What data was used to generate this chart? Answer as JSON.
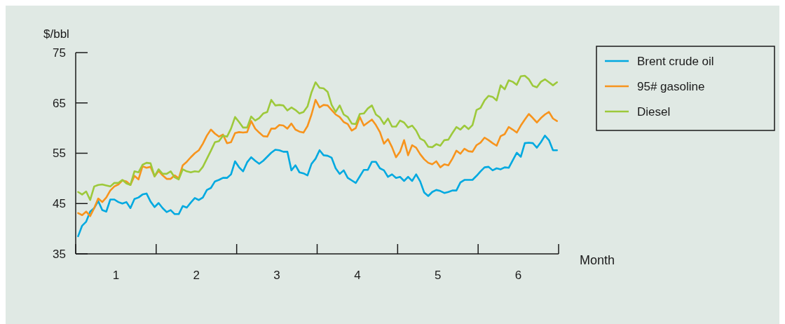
{
  "chart_data": {
    "type": "line",
    "ylabel": "$/bbl",
    "xlabel": "Month",
    "x": [
      0.03,
      0.08,
      0.13,
      0.18,
      0.23,
      0.28,
      0.33,
      0.38,
      0.43,
      0.48,
      0.53,
      0.58,
      0.63,
      0.68,
      0.73,
      0.78,
      0.83,
      0.88,
      0.93,
      0.98,
      1.03,
      1.08,
      1.13,
      1.18,
      1.23,
      1.28,
      1.33,
      1.38,
      1.43,
      1.48,
      1.53,
      1.58,
      1.63,
      1.68,
      1.73,
      1.78,
      1.83,
      1.88,
      1.93,
      1.98,
      2.03,
      2.08,
      2.13,
      2.18,
      2.23,
      2.28,
      2.33,
      2.38,
      2.43,
      2.48,
      2.53,
      2.58,
      2.63,
      2.68,
      2.73,
      2.78,
      2.83,
      2.88,
      2.93,
      2.98,
      3.03,
      3.08,
      3.13,
      3.18,
      3.23,
      3.28,
      3.33,
      3.38,
      3.43,
      3.48,
      3.53,
      3.58,
      3.63,
      3.68,
      3.73,
      3.78,
      3.83,
      3.88,
      3.93,
      3.98,
      4.03,
      4.08,
      4.13,
      4.18,
      4.23,
      4.28,
      4.33,
      4.38,
      4.43,
      4.48,
      4.53,
      4.58,
      4.63,
      4.68,
      4.73,
      4.78,
      4.83,
      4.88,
      4.93,
      4.98,
      5.03,
      5.08,
      5.13,
      5.18,
      5.23,
      5.28,
      5.33,
      5.38,
      5.43,
      5.48,
      5.53,
      5.58,
      5.63,
      5.68,
      5.73,
      5.78,
      5.83,
      5.88,
      5.93,
      5.98
    ],
    "series": [
      {
        "name": "Brent crude oil",
        "color": "#00a9e0",
        "values": [
          38.5,
          40.6,
          41.4,
          43.4,
          44.1,
          45.5,
          43.7,
          43.4,
          45.8,
          45.8,
          45.3,
          45.0,
          45.3,
          44.1,
          45.9,
          46.2,
          46.8,
          47.0,
          45.4,
          44.3,
          45.1,
          44.1,
          43.3,
          43.7,
          42.9,
          42.9,
          44.5,
          44.2,
          45.2,
          46.1,
          45.7,
          46.2,
          47.7,
          48.1,
          49.4,
          49.7,
          50.1,
          50.1,
          50.8,
          53.4,
          52.2,
          51.4,
          53.2,
          54.2,
          53.5,
          52.9,
          53.5,
          54.3,
          55.1,
          55.7,
          55.6,
          55.3,
          55.3,
          51.6,
          52.6,
          51.2,
          51.0,
          50.6,
          52.9,
          53.9,
          55.6,
          54.6,
          54.5,
          54.1,
          52.0,
          50.9,
          51.6,
          50.1,
          49.6,
          49.1,
          50.4,
          51.7,
          51.7,
          53.3,
          53.3,
          52.0,
          51.6,
          50.3,
          50.8,
          50.1,
          50.3,
          49.5,
          50.3,
          49.5,
          50.8,
          49.4,
          47.2,
          46.5,
          47.3,
          47.7,
          47.5,
          47.1,
          47.3,
          47.6,
          47.6,
          49.2,
          49.7,
          49.7,
          49.7,
          50.5,
          51.4,
          52.2,
          52.3,
          51.6,
          52.0,
          51.8,
          52.2,
          52.1,
          53.6,
          55.1,
          54.3,
          57.0,
          57.1,
          57.0,
          56.1,
          57.2,
          58.5,
          57.6,
          55.6,
          55.6
        ]
      },
      {
        "name": "95# gasoline",
        "color": "#f7941d",
        "values": [
          43.1,
          42.7,
          43.4,
          42.5,
          44.1,
          46.0,
          45.3,
          46.2,
          47.6,
          48.4,
          48.8,
          49.6,
          49.4,
          48.7,
          50.5,
          49.8,
          52.4,
          52.1,
          52.3,
          50.4,
          51.5,
          50.6,
          49.9,
          49.9,
          50.6,
          50.0,
          52.6,
          53.3,
          54.2,
          55.0,
          55.6,
          56.9,
          58.5,
          59.7,
          58.9,
          58.3,
          58.7,
          57.0,
          57.2,
          59.0,
          59.2,
          59.1,
          59.2,
          61.4,
          59.9,
          59.1,
          58.4,
          58.3,
          59.9,
          59.9,
          60.6,
          60.5,
          59.9,
          60.9,
          59.7,
          59.3,
          59.1,
          60.4,
          62.7,
          65.6,
          64.1,
          64.6,
          64.5,
          63.6,
          62.7,
          62.2,
          61.2,
          60.8,
          59.5,
          60.0,
          62.2,
          60.5,
          61.1,
          61.7,
          60.6,
          59.2,
          56.9,
          57.8,
          56.2,
          54.2,
          55.3,
          57.6,
          54.6,
          56.6,
          56.1,
          54.8,
          53.8,
          53.1,
          52.8,
          53.4,
          52.2,
          52.8,
          52.6,
          53.9,
          55.5,
          54.9,
          55.9,
          55.4,
          55.3,
          56.6,
          57.1,
          58.1,
          57.6,
          57.0,
          56.5,
          58.4,
          58.8,
          60.2,
          59.7,
          59.1,
          60.5,
          61.7,
          62.8,
          62.0,
          61.1,
          62.0,
          62.7,
          63.2,
          61.9,
          61.4
        ]
      },
      {
        "name": "Diesel",
        "color": "#9dc93b",
        "values": [
          47.3,
          46.8,
          47.4,
          45.7,
          48.4,
          48.7,
          48.8,
          48.6,
          48.4,
          49.1,
          49.1,
          49.7,
          49.0,
          48.7,
          51.4,
          51.2,
          52.7,
          53.1,
          53.0,
          50.4,
          51.8,
          50.9,
          50.9,
          51.4,
          50.2,
          49.8,
          51.8,
          51.4,
          51.2,
          51.4,
          51.3,
          52.3,
          53.9,
          55.5,
          57.2,
          57.4,
          58.5,
          58.3,
          59.9,
          62.2,
          61.2,
          60.1,
          60.1,
          62.3,
          61.5,
          62.0,
          62.9,
          63.2,
          65.6,
          64.5,
          64.6,
          64.5,
          63.5,
          64.1,
          63.6,
          62.9,
          63.2,
          64.3,
          67.1,
          69.1,
          68.0,
          67.9,
          67.2,
          64.6,
          63.2,
          64.5,
          62.7,
          62.2,
          60.9,
          60.8,
          62.8,
          62.9,
          63.9,
          64.5,
          62.7,
          62.1,
          60.8,
          61.9,
          60.3,
          60.3,
          61.5,
          61.1,
          60.1,
          60.5,
          59.5,
          57.9,
          57.5,
          56.3,
          56.2,
          56.8,
          56.5,
          57.6,
          57.7,
          59.0,
          60.2,
          59.7,
          60.5,
          59.8,
          60.6,
          63.6,
          64.0,
          65.5,
          66.4,
          66.2,
          65.5,
          68.5,
          67.7,
          69.5,
          69.2,
          68.6,
          70.3,
          70.4,
          69.7,
          68.4,
          68.1,
          69.2,
          69.7,
          69.1,
          68.5,
          69.1
        ]
      }
    ],
    "xlim": [
      0,
      6
    ],
    "xticks": [
      {
        "value": 0,
        "label": null
      },
      {
        "value": 0.5,
        "label": "1"
      },
      {
        "value": 1,
        "label": null
      },
      {
        "value": 1.5,
        "label": "2"
      },
      {
        "value": 2,
        "label": null
      },
      {
        "value": 2.5,
        "label": "3"
      },
      {
        "value": 3,
        "label": null
      },
      {
        "value": 3.5,
        "label": "4"
      },
      {
        "value": 4,
        "label": null
      },
      {
        "value": 4.5,
        "label": "5"
      },
      {
        "value": 5,
        "label": null
      },
      {
        "value": 5.5,
        "label": "6"
      },
      {
        "value": 6,
        "label": null
      }
    ],
    "ylim": [
      35,
      75
    ],
    "yticks": [
      35,
      45,
      55,
      65,
      75
    ],
    "legend": "right",
    "marker": "none",
    "line_style": "solid"
  }
}
